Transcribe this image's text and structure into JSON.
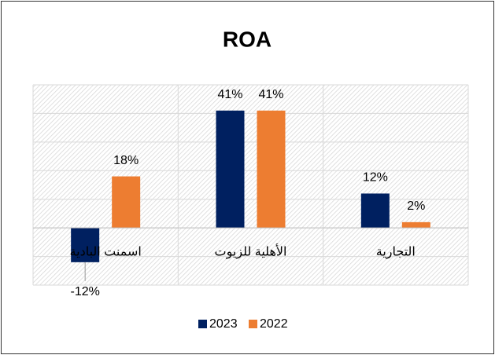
{
  "chart_data": {
    "type": "bar",
    "title": "ROA",
    "categories": [
      "اسمنت البادية",
      "الأهلية للزيوت",
      "التجارية"
    ],
    "series": [
      {
        "name": "2023",
        "color": "#002060",
        "values": [
          -12,
          41,
          12
        ],
        "value_labels": [
          "-12%",
          "41%",
          "12%"
        ]
      },
      {
        "name": "2022",
        "color": "#ED7D31",
        "values": [
          18,
          41,
          2
        ],
        "value_labels": [
          "18%",
          "41%",
          "2%"
        ]
      }
    ],
    "ylim": [
      -20,
      50
    ],
    "yticks": [
      -20,
      -10,
      0,
      10,
      20,
      30,
      40,
      50
    ],
    "grid": true,
    "legend": "bottom"
  }
}
